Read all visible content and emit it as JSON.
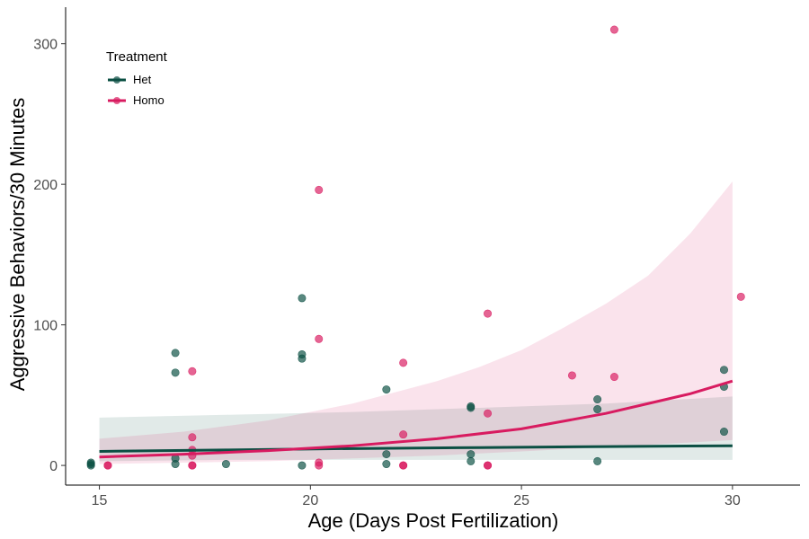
{
  "chart_data": {
    "type": "scatter",
    "xlabel": "Age (Days Post Fertilization)",
    "ylabel": "Aggressive Behaviors/30 Minutes",
    "xlim": [
      14.2,
      31.6
    ],
    "ylim": [
      -14,
      326
    ],
    "x_ticks": [
      15,
      20,
      25,
      30
    ],
    "y_ticks": [
      0,
      100,
      200,
      300
    ],
    "grid": false,
    "legend": {
      "title": "Treatment",
      "placement": "top-left",
      "entries": [
        "Het",
        "Homo"
      ]
    },
    "colors": {
      "Het": "#0b4f43",
      "Homo": "#d81b60"
    },
    "series": [
      {
        "name": "Het",
        "points": [
          [
            14.8,
            0
          ],
          [
            14.8,
            1
          ],
          [
            14.8,
            2
          ],
          [
            16.8,
            80
          ],
          [
            16.8,
            66
          ],
          [
            16.8,
            5
          ],
          [
            16.8,
            1
          ],
          [
            18.0,
            1
          ],
          [
            19.8,
            119
          ],
          [
            19.8,
            79
          ],
          [
            19.8,
            76
          ],
          [
            19.8,
            0
          ],
          [
            21.8,
            54
          ],
          [
            21.8,
            8
          ],
          [
            21.8,
            1
          ],
          [
            23.8,
            41
          ],
          [
            23.8,
            42
          ],
          [
            23.8,
            8
          ],
          [
            23.8,
            3
          ],
          [
            26.8,
            47
          ],
          [
            26.8,
            40
          ],
          [
            26.8,
            3
          ],
          [
            29.8,
            68
          ],
          [
            29.8,
            56
          ],
          [
            29.8,
            24
          ]
        ],
        "fit": [
          [
            15,
            10
          ],
          [
            18,
            11
          ],
          [
            21,
            12
          ],
          [
            24,
            12.7
          ],
          [
            27,
            13.4
          ],
          [
            30,
            14
          ]
        ],
        "ci_upper": [
          [
            15,
            34
          ],
          [
            18,
            36
          ],
          [
            21,
            38
          ],
          [
            24,
            41
          ],
          [
            27,
            44
          ],
          [
            30,
            49
          ]
        ],
        "ci_lower": [
          [
            15,
            3
          ],
          [
            18,
            4
          ],
          [
            21,
            4
          ],
          [
            24,
            4
          ],
          [
            27,
            4
          ],
          [
            30,
            4
          ]
        ]
      },
      {
        "name": "Homo",
        "points": [
          [
            15.2,
            0
          ],
          [
            15.2,
            0
          ],
          [
            17.2,
            67
          ],
          [
            17.2,
            20
          ],
          [
            17.2,
            11
          ],
          [
            17.2,
            7
          ],
          [
            17.2,
            0
          ],
          [
            17.2,
            0
          ],
          [
            20.2,
            196
          ],
          [
            20.2,
            90
          ],
          [
            20.2,
            2
          ],
          [
            20.2,
            0
          ],
          [
            22.2,
            73
          ],
          [
            22.2,
            22
          ],
          [
            22.2,
            0
          ],
          [
            22.2,
            0
          ],
          [
            24.2,
            108
          ],
          [
            24.2,
            37
          ],
          [
            24.2,
            0
          ],
          [
            24.2,
            0
          ],
          [
            26.2,
            64
          ],
          [
            27.2,
            310
          ],
          [
            27.2,
            63
          ],
          [
            30.2,
            120
          ]
        ],
        "fit": [
          [
            15,
            6
          ],
          [
            17,
            8
          ],
          [
            19,
            10.5
          ],
          [
            21,
            14
          ],
          [
            23,
            19
          ],
          [
            25,
            26
          ],
          [
            27,
            37
          ],
          [
            28,
            44
          ],
          [
            29,
            51
          ],
          [
            30,
            60
          ]
        ],
        "ci_upper": [
          [
            15,
            19
          ],
          [
            17,
            24
          ],
          [
            19,
            32
          ],
          [
            21,
            44
          ],
          [
            23,
            60
          ],
          [
            24,
            70
          ],
          [
            25,
            82
          ],
          [
            26,
            98
          ],
          [
            27,
            115
          ],
          [
            28,
            135
          ],
          [
            29,
            165
          ],
          [
            30,
            202
          ]
        ],
        "ci_lower": [
          [
            15,
            1
          ],
          [
            17,
            2
          ],
          [
            19,
            3
          ],
          [
            21,
            5
          ],
          [
            23,
            7
          ],
          [
            25,
            10
          ],
          [
            27,
            13
          ],
          [
            30,
            18
          ]
        ]
      }
    ]
  }
}
